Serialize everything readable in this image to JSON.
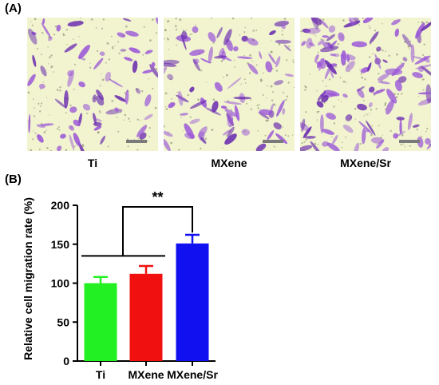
{
  "panel_a": {
    "label": "(A)",
    "images": [
      {
        "caption": "Ti",
        "stain_density": 0.55
      },
      {
        "caption": "MXene",
        "stain_density": 0.65
      },
      {
        "caption": "MXene/Sr",
        "stain_density": 0.95
      }
    ],
    "colors": {
      "background": "#f1f4cf",
      "stain": "#9a55d8",
      "stain_dark": "#6a2bb0",
      "scale_bar": "#7a7a7a"
    }
  },
  "panel_b": {
    "label": "(B)"
  },
  "chart_data": {
    "type": "bar",
    "categories": [
      "Ti",
      "MXene",
      "MXene/Sr"
    ],
    "values": [
      100,
      112,
      151
    ],
    "errors": [
      8,
      10,
      11
    ],
    "colors": [
      "#22f022",
      "#f01010",
      "#1010f0"
    ],
    "ylabel": "Relative cell migration rate (%)",
    "xlabel": "",
    "ylim": [
      0,
      200
    ],
    "yticks": [
      0,
      50,
      100,
      150,
      200
    ],
    "grid": false,
    "annotation": {
      "text": "**",
      "groups": [
        [
          0,
          1
        ],
        [
          2
        ]
      ]
    }
  }
}
